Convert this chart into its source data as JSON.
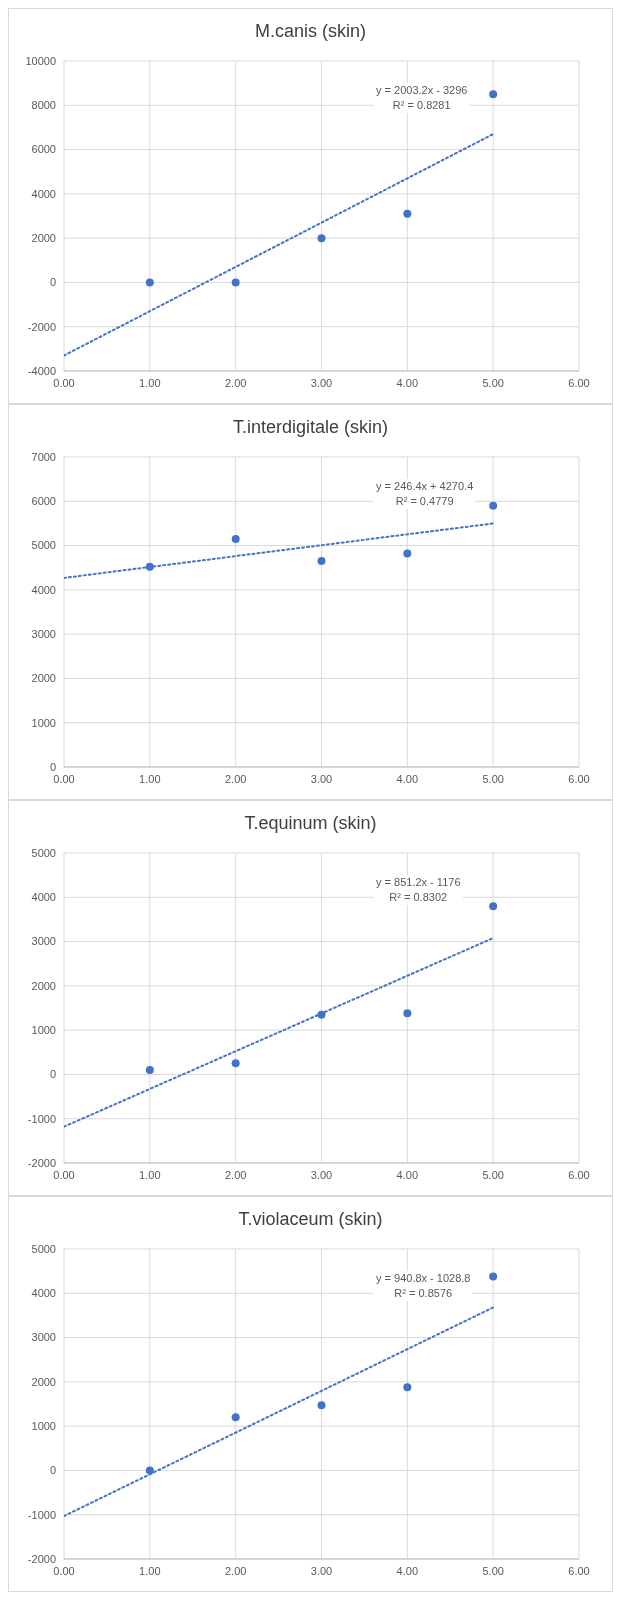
{
  "chart_data": [
    {
      "type": "scatter",
      "title": "M.canis (skin)",
      "xlim": [
        0,
        6
      ],
      "xticks": [
        {
          "value": 0,
          "label": "0.00"
        },
        {
          "value": 1,
          "label": "1.00"
        },
        {
          "value": 2,
          "label": "2.00"
        },
        {
          "value": 3,
          "label": "3.00"
        },
        {
          "value": 4,
          "label": "4.00"
        },
        {
          "value": 5,
          "label": "5.00"
        },
        {
          "value": 6,
          "label": "6.00"
        }
      ],
      "ylim": [
        -4000,
        10000
      ],
      "yticks": [
        -4000,
        -2000,
        0,
        2000,
        4000,
        6000,
        8000,
        10000
      ],
      "grid": true,
      "marker": "circle",
      "annotations": [
        "y = 2003.2x - 3296",
        "R² = 0.8281"
      ],
      "series": [
        {
          "type": "scatter",
          "color": "#4472c4",
          "x": [
            1,
            2,
            3,
            4,
            5
          ],
          "values": [
            0,
            0,
            2000,
            3100,
            8500
          ]
        },
        {
          "type": "line",
          "color": "#4472c4",
          "line_style": "dotted",
          "marker": "none",
          "x": [
            0,
            5
          ],
          "values": [
            -3300,
            6700
          ]
        }
      ]
    },
    {
      "type": "scatter",
      "title": "T.interdigitale (skin)",
      "xlim": [
        0,
        6
      ],
      "xticks": [
        {
          "value": 0,
          "label": "0.00"
        },
        {
          "value": 1,
          "label": "1.00"
        },
        {
          "value": 2,
          "label": "2.00"
        },
        {
          "value": 3,
          "label": "3.00"
        },
        {
          "value": 4,
          "label": "4.00"
        },
        {
          "value": 5,
          "label": "5.00"
        },
        {
          "value": 6,
          "label": "6.00"
        }
      ],
      "ylim": [
        0,
        7000
      ],
      "yticks": [
        0,
        1000,
        2000,
        3000,
        4000,
        5000,
        6000,
        7000
      ],
      "grid": true,
      "marker": "circle",
      "annotations": [
        "y = 246.4x + 4270.4",
        "R² = 0.4779"
      ],
      "series": [
        {
          "type": "scatter",
          "color": "#4472c4",
          "x": [
            1,
            2,
            3,
            4,
            5
          ],
          "values": [
            4520,
            5150,
            4650,
            4820,
            5900
          ]
        },
        {
          "type": "line",
          "color": "#4472c4",
          "line_style": "dotted",
          "marker": "none",
          "x": [
            0,
            5
          ],
          "values": [
            4270,
            5500
          ]
        }
      ]
    },
    {
      "type": "scatter",
      "title": "T.equinum (skin)",
      "xlim": [
        0,
        6
      ],
      "xticks": [
        {
          "value": 0,
          "label": "0.00"
        },
        {
          "value": 1,
          "label": "1.00"
        },
        {
          "value": 2,
          "label": "2.00"
        },
        {
          "value": 3,
          "label": "3.00"
        },
        {
          "value": 4,
          "label": "4.00"
        },
        {
          "value": 5,
          "label": "5.00"
        },
        {
          "value": 6,
          "label": "6.00"
        }
      ],
      "ylim": [
        -2000,
        5000
      ],
      "yticks": [
        -2000,
        -1000,
        0,
        1000,
        2000,
        3000,
        4000,
        5000
      ],
      "grid": true,
      "marker": "circle",
      "annotations": [
        "y = 851.2x - 1176",
        "R² = 0.8302"
      ],
      "series": [
        {
          "type": "scatter",
          "color": "#4472c4",
          "x": [
            1,
            2,
            3,
            4,
            5
          ],
          "values": [
            100,
            250,
            1350,
            1380,
            3800
          ]
        },
        {
          "type": "line",
          "color": "#4472c4",
          "line_style": "dotted",
          "marker": "none",
          "x": [
            0,
            5
          ],
          "values": [
            -1180,
            3080
          ]
        }
      ]
    },
    {
      "type": "scatter",
      "title": "T.violaceum (skin)",
      "xlim": [
        0,
        6
      ],
      "xticks": [
        {
          "value": 0,
          "label": "0.00"
        },
        {
          "value": 1,
          "label": "1.00"
        },
        {
          "value": 2,
          "label": "2.00"
        },
        {
          "value": 3,
          "label": "3.00"
        },
        {
          "value": 4,
          "label": "4.00"
        },
        {
          "value": 5,
          "label": "5.00"
        },
        {
          "value": 6,
          "label": "6.00"
        }
      ],
      "ylim": [
        -2000,
        5000
      ],
      "yticks": [
        -2000,
        -1000,
        0,
        1000,
        2000,
        3000,
        4000,
        5000
      ],
      "grid": true,
      "marker": "circle",
      "annotations": [
        "y = 940.8x - 1028.8",
        "R² = 0.8576"
      ],
      "series": [
        {
          "type": "scatter",
          "color": "#4472c4",
          "x": [
            1,
            2,
            3,
            4,
            5
          ],
          "values": [
            0,
            1200,
            1470,
            1880,
            4380
          ]
        },
        {
          "type": "line",
          "color": "#4472c4",
          "line_style": "dotted",
          "marker": "none",
          "x": [
            0,
            5
          ],
          "values": [
            -1030,
            3680
          ]
        }
      ]
    }
  ]
}
